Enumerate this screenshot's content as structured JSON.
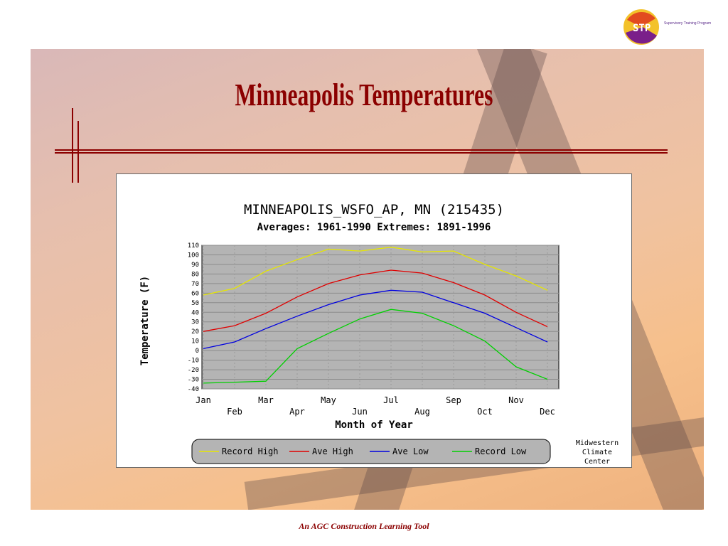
{
  "slide": {
    "title": "Minneapolis Temperatures",
    "footer": "An AGC Construction Learning Tool",
    "logo_text": "Supervisory Training Program",
    "logo_initials": "STP"
  },
  "chart_data": {
    "type": "line",
    "title": "MINNEAPOLIS_WSFO_AP, MN (215435)",
    "subtitle": "Averages: 1961-1990  Extremes: 1891-1996",
    "xlabel": "Month of Year",
    "ylabel": "Temperature (F)",
    "categories": [
      "Jan",
      "Feb",
      "Mar",
      "Apr",
      "May",
      "Jun",
      "Jul",
      "Aug",
      "Sep",
      "Oct",
      "Nov",
      "Dec"
    ],
    "ylim": [
      -40,
      110
    ],
    "yticks": [
      110,
      100,
      90,
      80,
      70,
      60,
      50,
      40,
      30,
      20,
      10,
      0,
      -10,
      -20,
      -30,
      -40
    ],
    "grid": true,
    "legend_position": "bottom",
    "series": [
      {
        "name": "Record High",
        "color": "#e6e600",
        "values": [
          58,
          65,
          83,
          95,
          106,
          104,
          108,
          103,
          104,
          90,
          78,
          63
        ]
      },
      {
        "name": "Ave High",
        "color": "#e00000",
        "values": [
          20,
          26,
          39,
          56,
          70,
          79,
          84,
          81,
          71,
          58,
          40,
          25
        ]
      },
      {
        "name": "Ave Low",
        "color": "#0000e0",
        "values": [
          2,
          9,
          23,
          36,
          48,
          58,
          63,
          61,
          50,
          39,
          24,
          9
        ]
      },
      {
        "name": "Record Low",
        "color": "#00d000",
        "values": [
          -34,
          -33,
          -32,
          2,
          18,
          33,
          43,
          39,
          26,
          10,
          -17,
          -30
        ]
      }
    ],
    "credit": [
      "Midwestern",
      "Climate",
      "Center"
    ]
  }
}
